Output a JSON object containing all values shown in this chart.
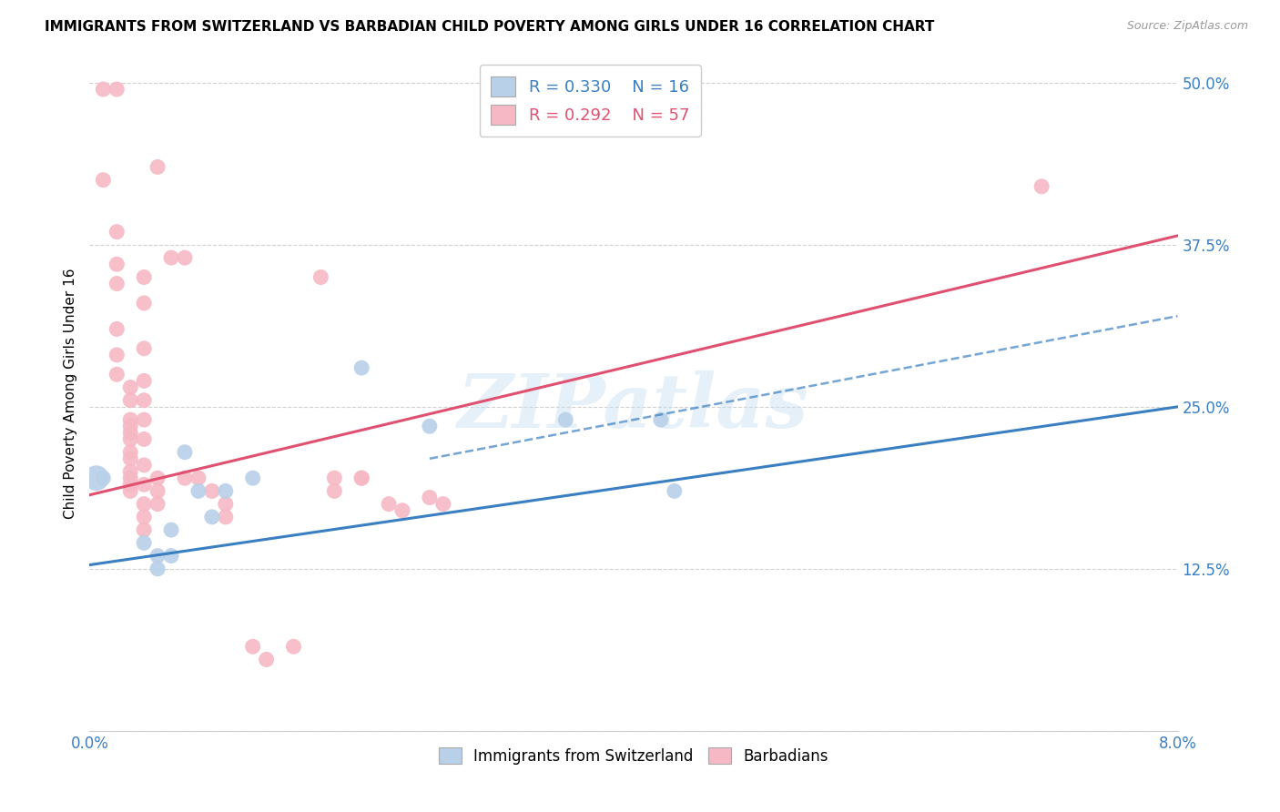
{
  "title": "IMMIGRANTS FROM SWITZERLAND VS BARBADIAN CHILD POVERTY AMONG GIRLS UNDER 16 CORRELATION CHART",
  "source": "Source: ZipAtlas.com",
  "ylabel": "Child Poverty Among Girls Under 16",
  "yticks": [
    0.0,
    0.125,
    0.25,
    0.375,
    0.5
  ],
  "ytick_labels": [
    "",
    "12.5%",
    "25.0%",
    "37.5%",
    "50.0%"
  ],
  "legend_r_blue": "R = 0.330",
  "legend_n_blue": "N = 16",
  "legend_r_pink": "R = 0.292",
  "legend_n_pink": "N = 57",
  "legend_label_blue": "Immigrants from Switzerland",
  "legend_label_pink": "Barbadians",
  "watermark": "ZIPatlas",
  "blue_color": "#b8d0e8",
  "pink_color": "#f5b8c4",
  "blue_line_color": "#3a7fc1",
  "pink_line_color": "#e05070",
  "blue_scatter": [
    [
      0.001,
      0.195
    ],
    [
      0.004,
      0.145
    ],
    [
      0.005,
      0.135
    ],
    [
      0.005,
      0.125
    ],
    [
      0.006,
      0.155
    ],
    [
      0.006,
      0.135
    ],
    [
      0.007,
      0.215
    ],
    [
      0.008,
      0.185
    ],
    [
      0.009,
      0.165
    ],
    [
      0.01,
      0.185
    ],
    [
      0.012,
      0.195
    ],
    [
      0.02,
      0.28
    ],
    [
      0.025,
      0.235
    ],
    [
      0.035,
      0.24
    ],
    [
      0.042,
      0.24
    ],
    [
      0.043,
      0.185
    ]
  ],
  "pink_scatter": [
    [
      0.001,
      0.495
    ],
    [
      0.002,
      0.495
    ],
    [
      0.001,
      0.425
    ],
    [
      0.002,
      0.385
    ],
    [
      0.002,
      0.36
    ],
    [
      0.002,
      0.345
    ],
    [
      0.002,
      0.31
    ],
    [
      0.002,
      0.29
    ],
    [
      0.002,
      0.275
    ],
    [
      0.003,
      0.265
    ],
    [
      0.003,
      0.255
    ],
    [
      0.003,
      0.24
    ],
    [
      0.003,
      0.235
    ],
    [
      0.003,
      0.23
    ],
    [
      0.003,
      0.225
    ],
    [
      0.003,
      0.215
    ],
    [
      0.003,
      0.21
    ],
    [
      0.003,
      0.2
    ],
    [
      0.003,
      0.195
    ],
    [
      0.003,
      0.19
    ],
    [
      0.003,
      0.185
    ],
    [
      0.004,
      0.35
    ],
    [
      0.004,
      0.33
    ],
    [
      0.004,
      0.295
    ],
    [
      0.004,
      0.27
    ],
    [
      0.004,
      0.255
    ],
    [
      0.004,
      0.24
    ],
    [
      0.004,
      0.225
    ],
    [
      0.004,
      0.205
    ],
    [
      0.004,
      0.19
    ],
    [
      0.004,
      0.175
    ],
    [
      0.004,
      0.165
    ],
    [
      0.004,
      0.155
    ],
    [
      0.005,
      0.435
    ],
    [
      0.005,
      0.195
    ],
    [
      0.005,
      0.185
    ],
    [
      0.005,
      0.175
    ],
    [
      0.006,
      0.365
    ],
    [
      0.007,
      0.365
    ],
    [
      0.007,
      0.195
    ],
    [
      0.008,
      0.195
    ],
    [
      0.009,
      0.185
    ],
    [
      0.01,
      0.175
    ],
    [
      0.01,
      0.165
    ],
    [
      0.012,
      0.065
    ],
    [
      0.013,
      0.055
    ],
    [
      0.015,
      0.065
    ],
    [
      0.017,
      0.35
    ],
    [
      0.018,
      0.195
    ],
    [
      0.018,
      0.185
    ],
    [
      0.02,
      0.195
    ],
    [
      0.02,
      0.195
    ],
    [
      0.022,
      0.175
    ],
    [
      0.023,
      0.17
    ],
    [
      0.025,
      0.18
    ],
    [
      0.026,
      0.175
    ],
    [
      0.07,
      0.42
    ]
  ],
  "blue_line": [
    0.0,
    0.128,
    0.08,
    0.25
  ],
  "pink_line": [
    0.0,
    0.182,
    0.08,
    0.382
  ],
  "blue_dash_line": [
    0.025,
    0.21,
    0.08,
    0.32
  ],
  "xmin": 0.0,
  "xmax": 0.08,
  "ymin": 0.0,
  "ymax": 0.52
}
